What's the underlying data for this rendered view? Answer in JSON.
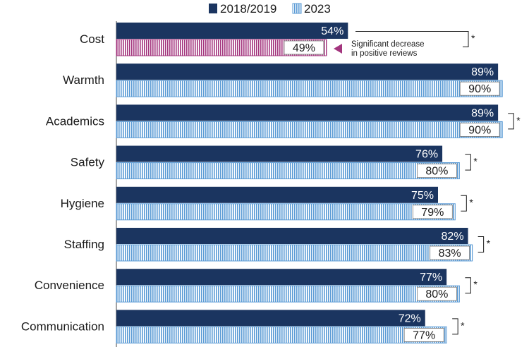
{
  "chart_data": {
    "type": "bar",
    "orientation": "horizontal",
    "categories": [
      "Cost",
      "Warmth",
      "Academics",
      "Safety",
      "Hygiene",
      "Staffing",
      "Convenience",
      "Communication"
    ],
    "series": [
      {
        "name": "2018/2019",
        "values": [
          54,
          89,
          89,
          76,
          75,
          82,
          77,
          72
        ],
        "color": "#1b3560",
        "style": "solid"
      },
      {
        "name": "2023",
        "values": [
          49,
          90,
          90,
          80,
          79,
          83,
          80,
          77
        ],
        "color": "#5b9bd5",
        "style": "vertical-stripes"
      }
    ],
    "value_labels": {
      "2018/2019": [
        "54%",
        "89%",
        "89%",
        "76%",
        "75%",
        "82%",
        "77%",
        "72%"
      ],
      "2023": [
        "49%",
        "90%",
        "90%",
        "80%",
        "79%",
        "83%",
        "80%",
        "77%"
      ]
    },
    "highlight": {
      "category": "Cost",
      "series": "2023",
      "color": "#a3357e"
    },
    "significance_marker": "*",
    "significant": [
      true,
      false,
      true,
      true,
      true,
      true,
      true,
      true
    ],
    "annotation": {
      "lines": [
        "Significant decrease",
        "in positive reviews"
      ],
      "target_category": "Cost"
    },
    "legend_position": "top-center",
    "xlim": [
      0,
      100
    ],
    "grid": false,
    "title": "",
    "xlabel": "",
    "ylabel": ""
  }
}
